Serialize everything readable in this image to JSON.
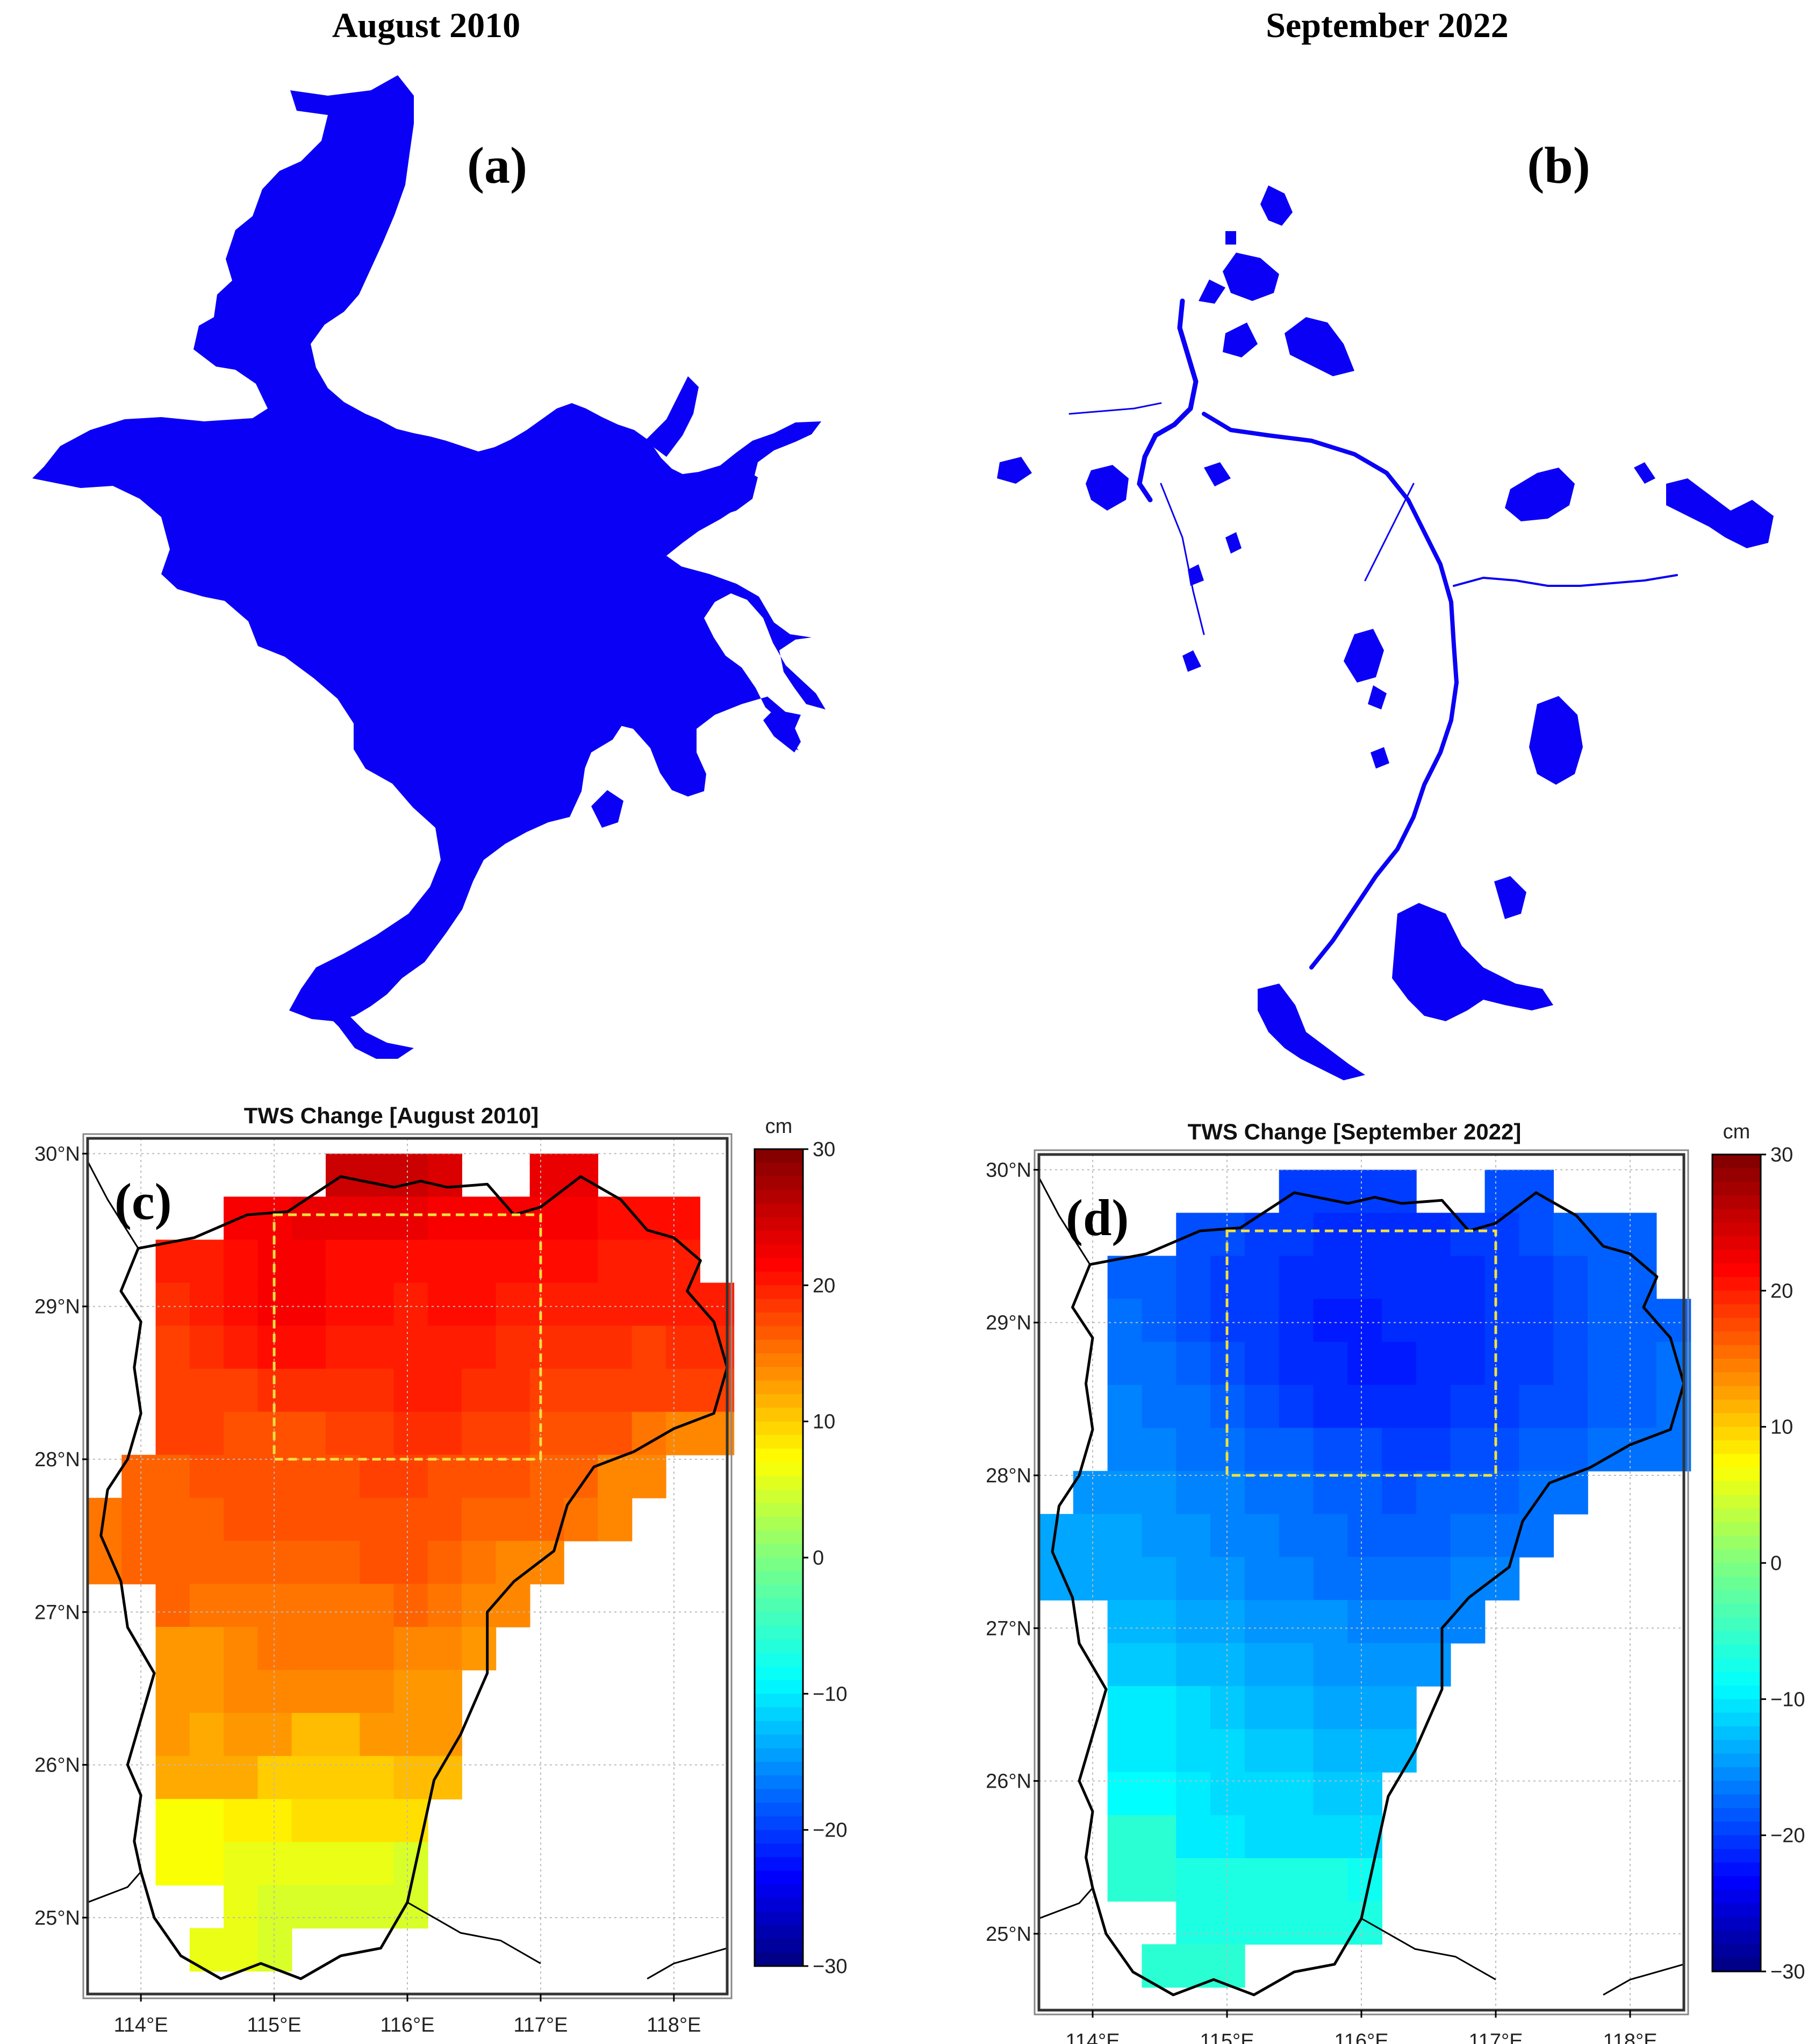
{
  "titles": {
    "left": "August 2010",
    "right": "September 2022"
  },
  "panel_letters": {
    "a": "(a)",
    "b": "(b)",
    "c": "(c)",
    "d": "(d)"
  },
  "colors": {
    "water": "#0a00f5",
    "border": "#000000",
    "subregion_box": "#f0e040"
  },
  "maps": [
    {
      "id": "c",
      "title": "TWS Change [August 2010]",
      "xlabels": [
        "114°E",
        "115°E",
        "116°E",
        "117°E",
        "118°E"
      ],
      "ylabels": [
        "30°N",
        "29°N",
        "28°N",
        "27°N",
        "26°N",
        "25°N"
      ],
      "colorbar": {
        "unit": "cm",
        "ticks": [
          "30",
          "20",
          "10",
          "0",
          "−10",
          "−20",
          "−30"
        ]
      }
    },
    {
      "id": "d",
      "title": "TWS Change [September 2022]",
      "xlabels": [
        "114°E",
        "115°E",
        "116°E",
        "117°E",
        "118°E"
      ],
      "ylabels": [
        "30°N",
        "29°N",
        "28°N",
        "27°N",
        "26°N",
        "25°N"
      ],
      "colorbar": {
        "unit": "cm",
        "ticks": [
          "30",
          "20",
          "10",
          "0",
          "−10",
          "−20",
          "−30"
        ]
      }
    }
  ],
  "chart_data": [
    {
      "type": "heatmap",
      "title": "TWS Change [August 2010]",
      "unit": "cm",
      "lon_range": [
        113.6,
        118.4
      ],
      "lat_range": [
        24.5,
        30.1
      ],
      "value_range": [
        -30,
        30
      ],
      "grid_rows_north_to_south": [
        [
          null,
          null,
          null,
          null,
          null,
          null,
          null,
          25,
          25,
          25,
          24,
          null,
          null,
          23,
          23,
          null,
          null,
          null,
          null
        ],
        [
          null,
          null,
          null,
          null,
          22,
          22,
          23,
          23,
          23,
          23,
          22,
          22,
          22,
          22,
          22,
          21,
          21,
          21,
          null
        ],
        [
          null,
          null,
          20,
          20,
          21,
          22,
          22,
          21,
          21,
          21,
          21,
          21,
          21,
          21,
          21,
          20,
          20,
          20,
          null
        ],
        [
          null,
          null,
          19,
          20,
          21,
          22,
          22,
          21,
          21,
          20,
          21,
          21,
          20,
          20,
          20,
          20,
          20,
          20,
          20
        ],
        [
          null,
          null,
          18,
          19,
          20,
          21,
          21,
          20,
          20,
          20,
          20,
          20,
          19,
          19,
          19,
          19,
          18,
          19,
          19
        ],
        [
          null,
          null,
          18,
          18,
          18,
          19,
          19,
          19,
          19,
          20,
          20,
          19,
          19,
          18,
          18,
          18,
          18,
          18,
          18
        ],
        [
          null,
          null,
          18,
          18,
          17,
          17,
          17,
          18,
          18,
          19,
          19,
          18,
          18,
          17,
          17,
          17,
          15,
          14,
          14
        ],
        [
          null,
          16,
          16,
          17,
          17,
          17,
          17,
          17,
          18,
          18,
          17,
          17,
          17,
          16,
          16,
          14,
          14,
          null,
          null
        ],
        [
          15,
          16,
          16,
          16,
          17,
          17,
          17,
          17,
          17,
          17,
          17,
          16,
          16,
          16,
          15,
          14,
          null,
          null,
          null
        ],
        [
          15,
          16,
          16,
          16,
          16,
          16,
          16,
          16,
          17,
          17,
          16,
          15,
          14,
          14,
          null,
          null,
          null,
          null,
          null
        ],
        [
          null,
          null,
          16,
          15,
          15,
          15,
          15,
          15,
          15,
          16,
          15,
          14,
          14,
          null,
          null,
          null,
          null,
          null,
          null
        ],
        [
          null,
          null,
          13,
          13,
          14,
          15,
          15,
          15,
          15,
          14,
          14,
          13,
          null,
          null,
          null,
          null,
          null,
          null,
          null
        ],
        [
          null,
          null,
          13,
          13,
          14,
          14,
          14,
          14,
          14,
          13,
          13,
          null,
          null,
          null,
          null,
          null,
          null,
          null,
          null
        ],
        [
          null,
          null,
          13,
          12,
          13,
          13,
          11,
          11,
          13,
          13,
          13,
          null,
          null,
          null,
          null,
          null,
          null,
          null,
          null
        ],
        [
          null,
          null,
          12,
          12,
          12,
          10,
          10,
          10,
          10,
          11,
          11,
          null,
          null,
          null,
          null,
          null,
          null,
          null,
          null
        ],
        [
          null,
          null,
          7,
          7,
          8,
          8,
          9,
          9,
          9,
          9,
          null,
          null,
          null,
          null,
          null,
          null,
          null,
          null,
          null
        ],
        [
          null,
          null,
          7,
          7,
          6,
          6,
          6,
          6,
          6,
          5,
          null,
          null,
          null,
          null,
          null,
          null,
          null,
          null,
          null
        ],
        [
          null,
          null,
          null,
          null,
          6,
          5,
          5,
          5,
          5,
          5,
          null,
          null,
          null,
          null,
          null,
          null,
          null,
          null,
          null
        ],
        [
          null,
          null,
          null,
          6,
          6,
          5,
          null,
          null,
          null,
          null,
          null,
          null,
          null,
          null,
          null,
          null,
          null,
          null,
          null
        ]
      ]
    },
    {
      "type": "heatmap",
      "title": "TWS Change [September 2022]",
      "unit": "cm",
      "lon_range": [
        113.6,
        118.4
      ],
      "lat_range": [
        24.5,
        30.1
      ],
      "value_range": [
        -30,
        30
      ],
      "grid_rows_north_to_south": [
        [
          null,
          null,
          null,
          null,
          null,
          null,
          null,
          -20,
          -20,
          -20,
          -20,
          null,
          null,
          -19,
          -19,
          null,
          null,
          null,
          null
        ],
        [
          null,
          null,
          null,
          null,
          -19,
          -19,
          -20,
          -20,
          -21,
          -21,
          -21,
          -21,
          -20,
          -20,
          -19,
          -18,
          -18,
          -18,
          null
        ],
        [
          null,
          null,
          -18,
          -18,
          -19,
          -20,
          -20,
          -21,
          -21,
          -21,
          -21,
          -21,
          -21,
          -20,
          -20,
          -19,
          -18,
          -18,
          null
        ],
        [
          null,
          null,
          -17,
          -18,
          -19,
          -20,
          -20,
          -21,
          -22,
          -22,
          -21,
          -21,
          -21,
          -20,
          -20,
          -19,
          -18,
          -18,
          -18
        ],
        [
          null,
          null,
          -17,
          -17,
          -18,
          -19,
          -20,
          -21,
          -21,
          -22,
          -22,
          -21,
          -21,
          -20,
          -20,
          -19,
          -18,
          -18,
          -17
        ],
        [
          null,
          null,
          -16,
          -17,
          -17,
          -18,
          -19,
          -20,
          -21,
          -21,
          -21,
          -21,
          -20,
          -20,
          -19,
          -19,
          -18,
          -18,
          -17
        ],
        [
          null,
          null,
          -16,
          -16,
          -17,
          -17,
          -18,
          -18,
          -19,
          -19,
          -20,
          -20,
          -19,
          -19,
          -18,
          -18,
          -17,
          -17,
          -17
        ],
        [
          null,
          -15,
          -15,
          -15,
          -16,
          -16,
          -17,
          -17,
          -18,
          -18,
          -19,
          -18,
          -18,
          -18,
          -17,
          -17,
          null,
          null,
          null
        ],
        [
          -14,
          -14,
          -14,
          -15,
          -15,
          -16,
          -16,
          -17,
          -17,
          -18,
          -18,
          -18,
          -17,
          -17,
          -17,
          null,
          null,
          null,
          null
        ],
        [
          -14,
          -14,
          -14,
          -14,
          -15,
          -15,
          -16,
          -16,
          -17,
          -17,
          -17,
          -17,
          -16,
          -16,
          null,
          null,
          null,
          null,
          null
        ],
        [
          null,
          null,
          -13,
          -13,
          -14,
          -14,
          -15,
          -15,
          -15,
          -16,
          -16,
          -16,
          -16,
          null,
          null,
          null,
          null,
          null,
          null
        ],
        [
          null,
          null,
          -12,
          -12,
          -13,
          -13,
          -14,
          -14,
          -15,
          -15,
          -15,
          -15,
          null,
          null,
          null,
          null,
          null,
          null,
          null
        ],
        [
          null,
          null,
          -10,
          -10,
          -11,
          -12,
          -13,
          -13,
          -14,
          -14,
          -14,
          null,
          null,
          null,
          null,
          null,
          null,
          null,
          null
        ],
        [
          null,
          null,
          -10,
          -10,
          -11,
          -11,
          -12,
          -12,
          -13,
          -13,
          -13,
          null,
          null,
          null,
          null,
          null,
          null,
          null,
          null
        ],
        [
          null,
          null,
          -9,
          -9,
          -10,
          -11,
          -11,
          -11,
          -12,
          -12,
          null,
          null,
          null,
          null,
          null,
          null,
          null,
          null,
          null
        ],
        [
          null,
          null,
          -6,
          -6,
          -10,
          -10,
          -11,
          -11,
          -11,
          -11,
          null,
          null,
          null,
          null,
          null,
          null,
          null,
          null,
          null
        ],
        [
          null,
          null,
          -6,
          -6,
          -7,
          -7,
          -7,
          -7,
          -7,
          -8,
          null,
          null,
          null,
          null,
          null,
          null,
          null,
          null,
          null
        ],
        [
          null,
          null,
          null,
          null,
          -7,
          -7,
          -7,
          -7,
          -7,
          -7,
          null,
          null,
          null,
          null,
          null,
          null,
          null,
          null,
          null
        ],
        [
          null,
          null,
          null,
          -6,
          -6,
          -6,
          null,
          null,
          null,
          null,
          null,
          null,
          null,
          null,
          null,
          null,
          null,
          null,
          null
        ]
      ]
    }
  ]
}
